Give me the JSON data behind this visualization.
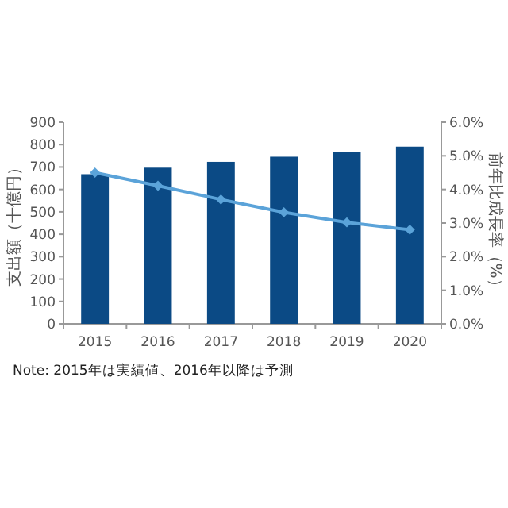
{
  "chart_data": {
    "type": "bar",
    "categories": [
      "2015",
      "2016",
      "2017",
      "2018",
      "2019",
      "2020"
    ],
    "series": [
      {
        "color": "#0b4a85",
        "values": [
          668,
          697,
          723,
          746,
          768,
          791
        ]
      },
      {
        "type": "line",
        "axis": "y2",
        "color": "#5ba3d9",
        "marker": "diamond",
        "values": [
          4.5,
          4.11,
          3.7,
          3.32,
          3.02,
          2.8
        ]
      }
    ],
    "ylim": [
      0,
      900
    ],
    "yticks": [
      0,
      100,
      200,
      300,
      400,
      500,
      600,
      700,
      800,
      900
    ],
    "y2lim": [
      0,
      6
    ],
    "y2ticks": [
      {
        "value": 0,
        "label": "0.0%"
      },
      {
        "value": 1,
        "label": "1.0%"
      },
      {
        "value": 2,
        "label": "2.0%"
      },
      {
        "value": 3,
        "label": "3.0%"
      },
      {
        "value": 4,
        "label": "4.0%"
      },
      {
        "value": 5,
        "label": "5.0%"
      },
      {
        "value": 6,
        "label": "6.0%"
      }
    ],
    "ylabel": "支出額（十億円）",
    "y2label": "前年比成長率（%）",
    "annotations": [
      "Note: 2015年は実績値、2016年以降は予測"
    ]
  }
}
